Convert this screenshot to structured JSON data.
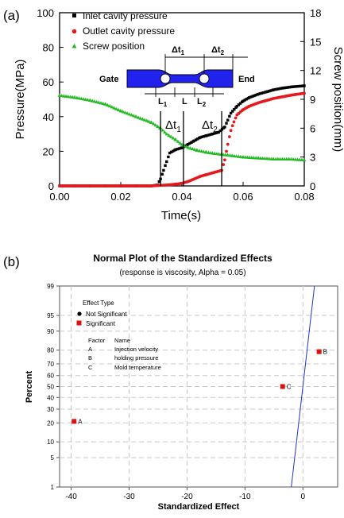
{
  "chart_data": [
    {
      "panel_label": "(a)",
      "type": "scatter",
      "xlabel": "Time(s)",
      "ylabel": "Pressure(MPa)",
      "y2label": "Screw position(mm)",
      "xlim": [
        0.0,
        0.08
      ],
      "ylim": [
        0,
        100
      ],
      "y2lim": [
        0,
        18
      ],
      "x_ticks": [
        "0.00",
        "0.02",
        "0.04",
        "0.06",
        "0.08"
      ],
      "y_ticks": [
        "0",
        "20",
        "40",
        "60",
        "80",
        "100"
      ],
      "y2_ticks": [
        "0",
        "3",
        "6",
        "9",
        "12",
        "15",
        "18"
      ],
      "legend_position": "top-left",
      "series": [
        {
          "name": "Inlet cavity pressure",
          "color": "#000000",
          "marker": "square",
          "points": [
            [
              0.0,
              0
            ],
            [
              0.005,
              0
            ],
            [
              0.01,
              0
            ],
            [
              0.015,
              0
            ],
            [
              0.02,
              0
            ],
            [
              0.025,
              0
            ],
            [
              0.03,
              0
            ],
            [
              0.032,
              0.5
            ],
            [
              0.033,
              4
            ],
            [
              0.034,
              9
            ],
            [
              0.035,
              14
            ],
            [
              0.036,
              19
            ],
            [
              0.038,
              21
            ],
            [
              0.04,
              22
            ],
            [
              0.042,
              24
            ],
            [
              0.044,
              26
            ],
            [
              0.046,
              28
            ],
            [
              0.048,
              29
            ],
            [
              0.05,
              30
            ],
            [
              0.052,
              31
            ],
            [
              0.054,
              34
            ],
            [
              0.055,
              38
            ],
            [
              0.056,
              42
            ],
            [
              0.058,
              46
            ],
            [
              0.06,
              49
            ],
            [
              0.062,
              51
            ],
            [
              0.065,
              53
            ],
            [
              0.068,
              54.5
            ],
            [
              0.07,
              55.5
            ],
            [
              0.073,
              56.5
            ],
            [
              0.076,
              57.2
            ],
            [
              0.08,
              57.8
            ]
          ]
        },
        {
          "name": "Outlet cavity pressure",
          "color": "#e8171b",
          "marker": "circle",
          "points": [
            [
              0.0,
              0
            ],
            [
              0.005,
              0
            ],
            [
              0.01,
              0
            ],
            [
              0.015,
              0
            ],
            [
              0.02,
              0
            ],
            [
              0.025,
              0
            ],
            [
              0.03,
              0
            ],
            [
              0.035,
              0.5
            ],
            [
              0.038,
              1
            ],
            [
              0.04,
              1.5
            ],
            [
              0.042,
              2.5
            ],
            [
              0.044,
              4
            ],
            [
              0.046,
              5.5
            ],
            [
              0.048,
              6.5
            ],
            [
              0.05,
              7.5
            ],
            [
              0.052,
              8.5
            ],
            [
              0.053,
              9
            ],
            [
              0.054,
              15
            ],
            [
              0.055,
              24
            ],
            [
              0.056,
              32
            ],
            [
              0.057,
              37
            ],
            [
              0.058,
              41
            ],
            [
              0.06,
              44
            ],
            [
              0.062,
              46
            ],
            [
              0.065,
              48
            ],
            [
              0.068,
              49.5
            ],
            [
              0.07,
              50.5
            ],
            [
              0.073,
              51.5
            ],
            [
              0.076,
              52.5
            ],
            [
              0.08,
              53.5
            ]
          ]
        },
        {
          "name": "Screw position",
          "axis": "y2",
          "color": "#22bb22",
          "marker": "triangle",
          "points": [
            [
              0.0,
              9.4
            ],
            [
              0.005,
              9.2
            ],
            [
              0.01,
              8.9
            ],
            [
              0.015,
              8.5
            ],
            [
              0.02,
              7.8
            ],
            [
              0.025,
              7.2
            ],
            [
              0.03,
              6.6
            ],
            [
              0.033,
              6.0
            ],
            [
              0.035,
              5.4
            ],
            [
              0.038,
              4.8
            ],
            [
              0.04,
              4.3
            ],
            [
              0.042,
              4.0
            ],
            [
              0.045,
              3.7
            ],
            [
              0.048,
              3.5
            ],
            [
              0.05,
              3.4
            ],
            [
              0.055,
              3.2
            ],
            [
              0.06,
              3.0
            ],
            [
              0.065,
              2.9
            ],
            [
              0.07,
              2.8
            ],
            [
              0.075,
              2.8
            ],
            [
              0.08,
              2.7
            ]
          ]
        }
      ],
      "vertical_lines": [
        0.033,
        0.0405,
        0.053
      ],
      "annotations": {
        "dt1": "Δt",
        "dt1_sub": "1",
        "dt2": "Δt",
        "dt2_sub": "2"
      },
      "inset_diagram": {
        "gate_label": "Gate",
        "end_label": "End",
        "dt1": "Δt",
        "dt1_sub": "1",
        "dt2": "Δt",
        "dt2_sub": "2",
        "l1": "L",
        "l1_sub": "1",
        "l": "L",
        "l2": "L",
        "l2_sub": "2",
        "fill_color": "#2222ee"
      }
    },
    {
      "panel_label": "(b)",
      "type": "scatter",
      "title": "Normal Plot of the Standardized Effects",
      "subtitle": "(response is viscosity, Alpha = 0.05)",
      "xlabel": "Standardized Effect",
      "ylabel": "Percent",
      "xlim": [
        -42,
        6
      ],
      "x_ticks": [
        "-40",
        "-30",
        "-20",
        "-10",
        "0"
      ],
      "y_ticks": [
        "1",
        "5",
        "10",
        "20",
        "30",
        "40",
        "50",
        "60",
        "70",
        "80",
        "90",
        "95",
        "99"
      ],
      "y_scale": "normal-probability",
      "grid": true,
      "points": [
        {
          "label": "A",
          "x": -39.5,
          "y": 21,
          "significant": true
        },
        {
          "label": "C",
          "x": -3.5,
          "y": 50,
          "significant": true
        },
        {
          "label": "B",
          "x": 2.8,
          "y": 79,
          "significant": true
        }
      ],
      "fit_line": {
        "color": "#2233cc",
        "at_y1_x": -2.0,
        "at_y99_x": 2.0
      },
      "legend": {
        "title": "Effect Type",
        "not_significant": "Not Significant",
        "significant": "Significant",
        "significant_color": "#dd1111",
        "factor_header": "Factor",
        "name_header": "Name",
        "factors": [
          {
            "factor": "A",
            "name": "Injection velocity"
          },
          {
            "factor": "B",
            "name": "holding pressure"
          },
          {
            "factor": "C",
            "name": "Mold temperature"
          }
        ]
      }
    }
  ]
}
